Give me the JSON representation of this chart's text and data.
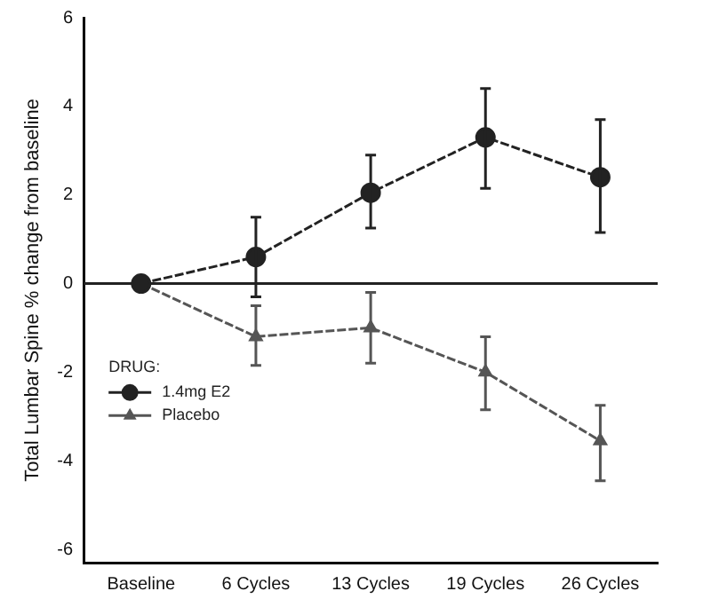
{
  "chart_data": {
    "type": "line",
    "ylabel": "Total Lumbar Spine % change from baseline",
    "legend_title": "DRUG:",
    "legend": "left",
    "categories": [
      "Baseline",
      "6 Cycles",
      "13 Cycles",
      "19 Cycles",
      "26 Cycles"
    ],
    "series": [
      {
        "name": "1.4mg E2",
        "color": "#222222",
        "marker": "circle",
        "values": [
          0,
          0.6,
          2.05,
          3.3,
          2.4
        ],
        "errors": [
          null,
          [
            -0.3,
            1.5
          ],
          [
            1.25,
            2.9
          ],
          [
            2.15,
            4.4
          ],
          [
            1.15,
            3.7
          ]
        ]
      },
      {
        "name": "Placebo",
        "color": "#555555",
        "marker": "triangle",
        "values": [
          0,
          -1.2,
          -1.0,
          -2.0,
          -3.55
        ],
        "errors": [
          null,
          [
            -1.85,
            -0.5
          ],
          [
            -1.8,
            -0.2
          ],
          [
            -2.85,
            -1.2
          ],
          [
            -4.45,
            -2.75
          ]
        ]
      }
    ],
    "ylim": [
      -6.3,
      6
    ],
    "yticks": [
      -6,
      -4,
      -2,
      0,
      2,
      4,
      6
    ],
    "grid": false,
    "line_style": "dashed",
    "ref_lines": [
      {
        "axis": "y",
        "value": 0,
        "color": "#222222"
      }
    ]
  }
}
